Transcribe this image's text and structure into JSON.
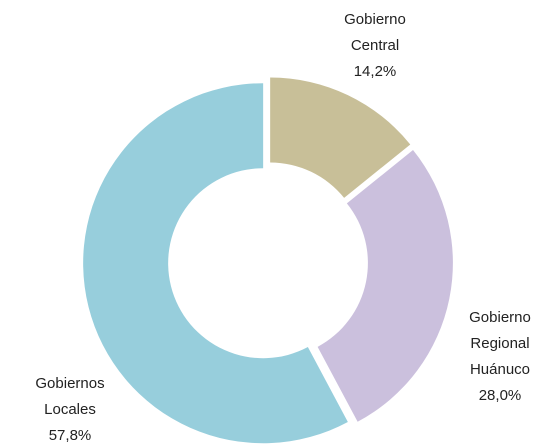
{
  "chart_data": {
    "type": "donut",
    "categories": [
      "Gobierno Central",
      "Gobierno Regional Huánuco",
      "Gobiernos Locales"
    ],
    "values": [
      14.2,
      28.0,
      57.8
    ],
    "value_labels": [
      "14,2%",
      "28,0%",
      "57,8%"
    ],
    "colors": [
      "#c8bf98",
      "#cbc0dd",
      "#97cedc"
    ]
  }
}
